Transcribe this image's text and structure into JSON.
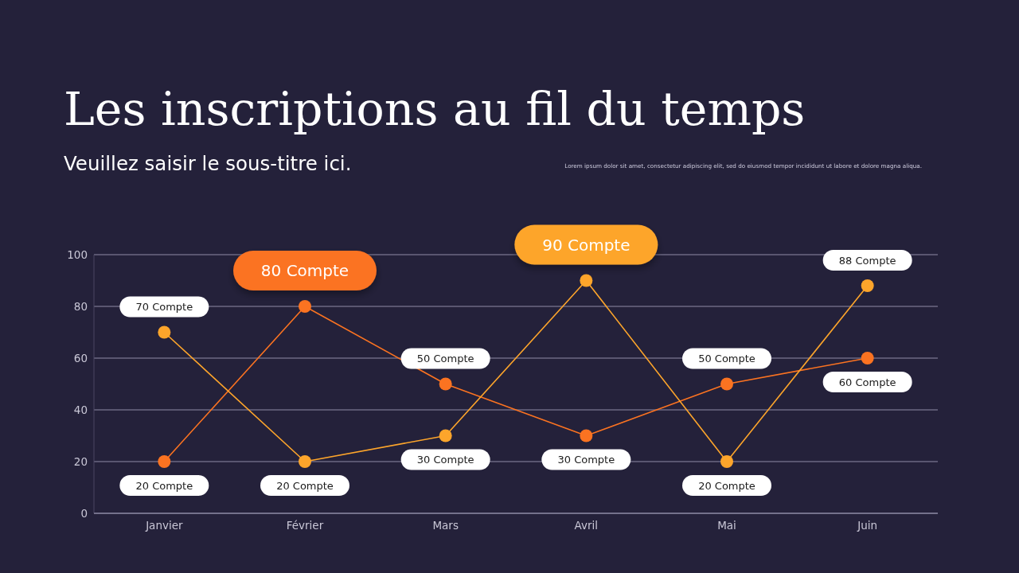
{
  "chart_data": {
    "type": "line",
    "title": "Les inscriptions au fil du temps",
    "subtitle": "Veuillez saisir le sous-titre ici.",
    "annotations": [
      "Lorem ipsum dolor sit amet, consectetur adipiscing elit, sed do eiusmod tempor incididunt ut labore et dolore magna aliqua."
    ],
    "categories": [
      "Janvier",
      "Février",
      "Mars",
      "Avril",
      "Mai",
      "Juin"
    ],
    "series": [
      {
        "color": "#fb7321",
        "values": [
          20,
          80,
          50,
          30,
          50,
          60
        ],
        "value_labels": [
          "20 Compte",
          "80 Compte",
          "50 Compte",
          "30 Compte",
          "50 Compte",
          "60 Compte"
        ]
      },
      {
        "color": "#fda52b",
        "values": [
          70,
          20,
          30,
          90,
          20,
          88
        ],
        "value_labels": [
          "70 Compte",
          "20 Compte",
          "30 Compte",
          "90 Compte",
          "20 Compte",
          "88 Compte"
        ]
      }
    ],
    "ylim": [
      0,
      100
    ],
    "yticks": [
      0,
      20,
      40,
      60,
      80,
      100
    ],
    "grid": "y",
    "marker": "circle"
  }
}
